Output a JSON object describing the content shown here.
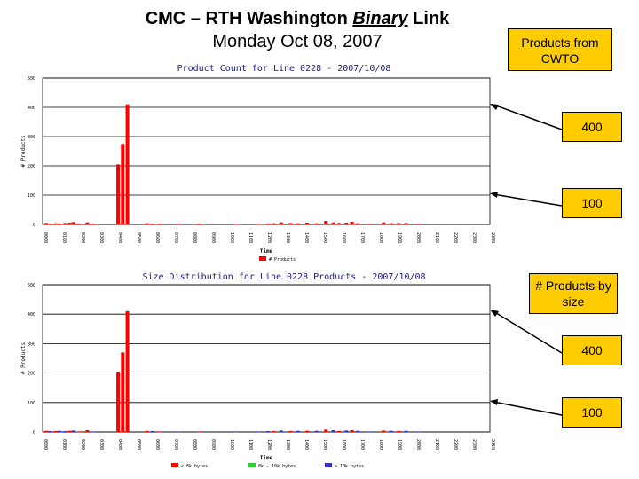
{
  "slide": {
    "title_pre": "CMC – RTH Washington ",
    "title_em": "Binary",
    "title_post": " Link",
    "subtitle": "Monday Oct 08, 2007"
  },
  "callouts": {
    "products_from": "Products from CWTO",
    "c400_top": "400",
    "c100_top": "100",
    "products_by_size": "# Products by size",
    "c400_bottom": "400",
    "c100_bottom": "100"
  },
  "colors": {
    "red": "#ff0000",
    "green": "#33cc33",
    "blue": "#3333cc",
    "callout": "#ffcc00"
  },
  "chart_data": [
    {
      "type": "bar",
      "title": "Product Count for Line 0228 - 2007/10/08",
      "xlabel": "Time",
      "ylabel": "# Products",
      "ylim": [
        0,
        500
      ],
      "yticks": [
        0,
        100,
        200,
        300,
        400,
        500
      ],
      "grid": true,
      "legend_position": "bottom",
      "hour_labels": [
        "0000",
        "0100",
        "0200",
        "0300",
        "0400",
        "0500",
        "0600",
        "0700",
        "0800",
        "0900",
        "1000",
        "1100",
        "1200",
        "1300",
        "1400",
        "1500",
        "1600",
        "1700",
        "1800",
        "1900",
        "2000",
        "2100",
        "2200",
        "2300",
        "2359"
      ],
      "series": [
        {
          "name": "# Products",
          "color": "#ff0000",
          "points": [
            [
              0.2,
              5
            ],
            [
              0.4,
              3
            ],
            [
              0.7,
              4
            ],
            [
              0.9,
              3
            ],
            [
              1.2,
              5
            ],
            [
              1.45,
              6
            ],
            [
              1.65,
              8
            ],
            [
              1.95,
              3
            ],
            [
              2.4,
              7
            ],
            [
              2.7,
              3
            ],
            [
              4.05,
              205
            ],
            [
              4.3,
              275
            ],
            [
              4.55,
              410
            ],
            [
              5.6,
              4
            ],
            [
              5.9,
              3
            ],
            [
              6.3,
              3
            ],
            [
              7.3,
              2
            ],
            [
              8.4,
              3
            ],
            [
              10.4,
              2
            ],
            [
              11.6,
              2
            ],
            [
              12.1,
              3
            ],
            [
              12.4,
              4
            ],
            [
              12.8,
              7
            ],
            [
              13.3,
              5
            ],
            [
              13.7,
              4
            ],
            [
              14.2,
              6
            ],
            [
              14.7,
              4
            ],
            [
              15.2,
              12
            ],
            [
              15.6,
              7
            ],
            [
              15.9,
              5
            ],
            [
              16.3,
              6
            ],
            [
              16.6,
              9
            ],
            [
              16.9,
              4
            ],
            [
              17.5,
              2
            ],
            [
              18.3,
              7
            ],
            [
              18.7,
              4
            ],
            [
              19.1,
              5
            ],
            [
              19.5,
              5
            ],
            [
              20.2,
              2
            ]
          ]
        }
      ]
    },
    {
      "type": "bar",
      "title": "Size Distribution for Line 0228 Products - 2007/10/08",
      "xlabel": "Time",
      "ylabel": "# Products",
      "ylim": [
        0,
        500
      ],
      "yticks": [
        0,
        100,
        200,
        300,
        400,
        500
      ],
      "grid": true,
      "legend_position": "bottom",
      "hour_labels": [
        "0000",
        "0100",
        "0200",
        "0300",
        "0400",
        "0500",
        "0600",
        "0700",
        "0800",
        "0900",
        "1000",
        "1100",
        "1200",
        "1300",
        "1400",
        "1500",
        "1600",
        "1700",
        "1800",
        "1900",
        "2000",
        "2100",
        "2200",
        "2300",
        "2359"
      ],
      "series": [
        {
          "name": "< 8k bytes",
          "color": "#ff0000",
          "points": [
            [
              0.2,
              4
            ],
            [
              0.7,
              3
            ],
            [
              1.45,
              4
            ],
            [
              1.95,
              2
            ],
            [
              2.4,
              6
            ],
            [
              4.05,
              205
            ],
            [
              4.3,
              270
            ],
            [
              4.55,
              410
            ],
            [
              5.6,
              3
            ],
            [
              6.3,
              2
            ],
            [
              8.4,
              2
            ],
            [
              12.4,
              3
            ],
            [
              13.3,
              3
            ],
            [
              14.2,
              4
            ],
            [
              15.2,
              8
            ],
            [
              15.9,
              3
            ],
            [
              16.6,
              6
            ],
            [
              18.3,
              5
            ],
            [
              19.1,
              3
            ]
          ]
        },
        {
          "name": "8k - 10k bytes",
          "color": "#33cc33",
          "points": []
        },
        {
          "name": "> 10k bytes",
          "color": "#3333cc",
          "points": [
            [
              0.4,
              3
            ],
            [
              0.9,
              4
            ],
            [
              1.2,
              3
            ],
            [
              1.65,
              5
            ],
            [
              2.7,
              2
            ],
            [
              5.9,
              3
            ],
            [
              7.3,
              2
            ],
            [
              10.4,
              2
            ],
            [
              11.6,
              2
            ],
            [
              12.1,
              3
            ],
            [
              12.8,
              5
            ],
            [
              13.7,
              4
            ],
            [
              14.7,
              4
            ],
            [
              15.6,
              6
            ],
            [
              16.3,
              5
            ],
            [
              16.9,
              4
            ],
            [
              17.5,
              2
            ],
            [
              18.7,
              4
            ],
            [
              19.5,
              4
            ],
            [
              20.2,
              2
            ]
          ]
        }
      ]
    }
  ]
}
